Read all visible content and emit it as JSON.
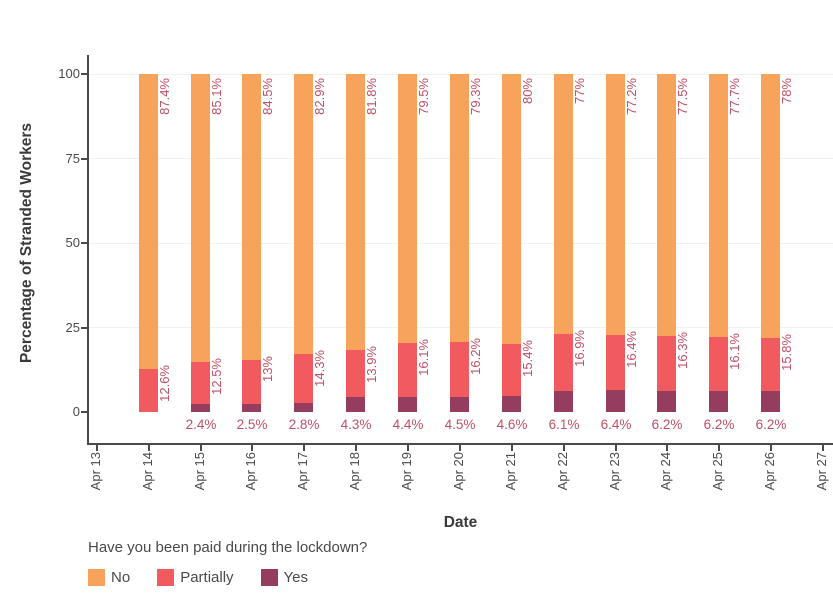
{
  "chart_data": {
    "type": "bar",
    "stacked": true,
    "orientation": "vertical",
    "title": "",
    "xlabel": "Date",
    "ylabel": "Percentage of Stranded Workers",
    "ylim": [
      0,
      100
    ],
    "yticks": [
      0,
      25,
      50,
      75,
      100
    ],
    "xtick_labels": [
      "Apr 13",
      "Apr 14",
      "Apr 15",
      "Apr 16",
      "Apr 17",
      "Apr 18",
      "Apr 19",
      "Apr 20",
      "Apr 21",
      "Apr 22",
      "Apr 23",
      "Apr 24",
      "Apr 25",
      "Apr 26",
      "Apr 27"
    ],
    "categories": [
      "Apr 14",
      "Apr 15",
      "Apr 16",
      "Apr 17",
      "Apr 18",
      "Apr 19",
      "Apr 20",
      "Apr 21",
      "Apr 22",
      "Apr 23",
      "Apr 24",
      "Apr 25",
      "Apr 26"
    ],
    "series": [
      {
        "name": "No",
        "color": "#F8A35C",
        "values": [
          87.4,
          85.1,
          84.5,
          82.9,
          81.8,
          79.5,
          79.3,
          80,
          77,
          77.2,
          77.5,
          77.7,
          78
        ],
        "labels": [
          "87.4%",
          "85.1%",
          "84.5%",
          "82.9%",
          "81.8%",
          "79.5%",
          "79.3%",
          "80%",
          "77%",
          "77.2%",
          "77.5%",
          "77.7%",
          "78%"
        ]
      },
      {
        "name": "Partially",
        "color": "#F15B5F",
        "values": [
          12.6,
          12.5,
          13,
          14.3,
          13.9,
          16.1,
          16.2,
          15.4,
          16.9,
          16.4,
          16.3,
          16.1,
          15.8
        ],
        "labels": [
          "12.6%",
          "12.5%",
          "13%",
          "14.3%",
          "13.9%",
          "16.1%",
          "16.2%",
          "15.4%",
          "16.9%",
          "16.4%",
          "16.3%",
          "16.1%",
          "15.8%"
        ]
      },
      {
        "name": "Yes",
        "color": "#953D5F",
        "values": [
          0,
          2.4,
          2.5,
          2.8,
          4.3,
          4.4,
          4.5,
          4.6,
          6.1,
          6.4,
          6.2,
          6.2,
          6.2
        ],
        "labels": [
          "",
          "2.4%",
          "2.5%",
          "2.8%",
          "4.3%",
          "4.4%",
          "4.5%",
          "4.6%",
          "6.1%",
          "6.4%",
          "6.2%",
          "6.2%",
          "6.2%"
        ]
      }
    ],
    "legend": {
      "title": "Have you been paid during the lockdown?",
      "position": "bottom-left",
      "entries": [
        "No",
        "Partially",
        "Yes"
      ]
    },
    "grid": "horizontal-only",
    "annotation_label_color": "#C05066",
    "axis_text_color": "#4a4a4a",
    "axis_title_color": "#3a3a3a"
  }
}
